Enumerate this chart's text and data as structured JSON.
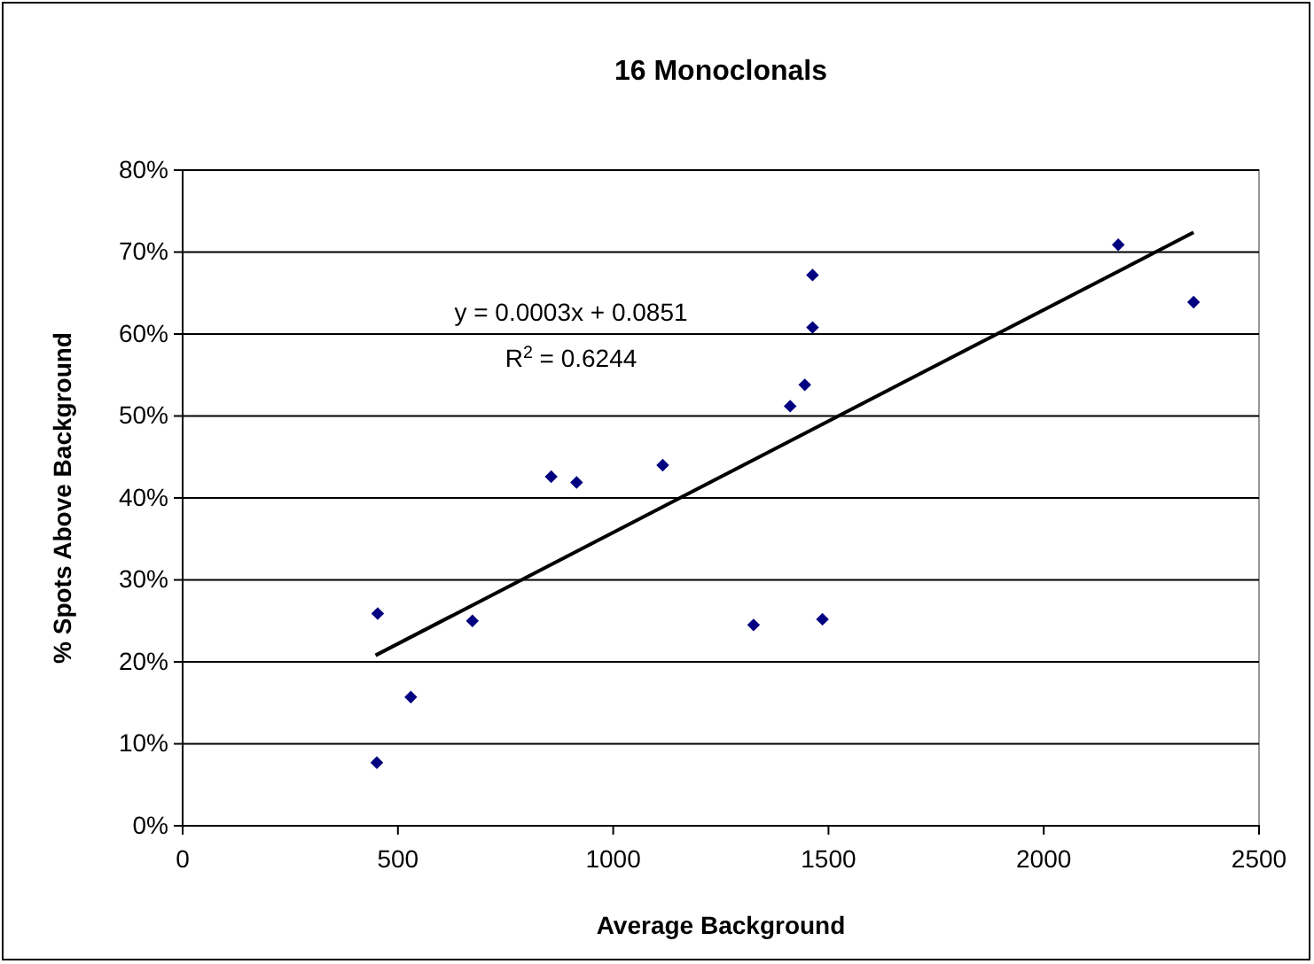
{
  "chart_data": {
    "type": "scatter",
    "title": "16 Monoclonals",
    "xlabel": "Average Background",
    "ylabel": "% Spots Above Background",
    "series": [
      {
        "color": "#000080",
        "marker": "diamond",
        "x": [
          453,
          451,
          530,
          673,
          856,
          915,
          1115,
          1326,
          1486,
          1411,
          1445,
          1463,
          1463,
          2173,
          2348
        ],
        "values": [
          25.9,
          7.7,
          15.7,
          25.0,
          42.6,
          41.9,
          44.0,
          24.5,
          25.2,
          51.2,
          53.8,
          60.8,
          67.2,
          70.9,
          63.9
        ]
      },
      {
        "type": "line",
        "color": "#000000",
        "marker": "none",
        "line_style": "solid",
        "x": [
          448,
          2348
        ],
        "values": [
          20.8,
          72.4
        ]
      }
    ],
    "annotations": [
      "y = 0.0003x + 0.0851",
      "R$^{2}$ = 0.6244"
    ],
    "xlim": [
      0,
      2500
    ],
    "xticks": [
      0,
      500,
      1000,
      1500,
      2000,
      2500
    ],
    "ylim": [
      0,
      80
    ],
    "yticks": [
      {
        "value": 0,
        "label": "0%"
      },
      {
        "value": 10,
        "label": "10%"
      },
      {
        "value": 20,
        "label": "20%"
      },
      {
        "value": 30,
        "label": "30%"
      },
      {
        "value": 40,
        "label": "40%"
      },
      {
        "value": 50,
        "label": "50%"
      },
      {
        "value": 60,
        "label": "60%"
      },
      {
        "value": 70,
        "label": "70%"
      },
      {
        "value": 80,
        "label": "80%"
      }
    ],
    "grid": "y"
  }
}
